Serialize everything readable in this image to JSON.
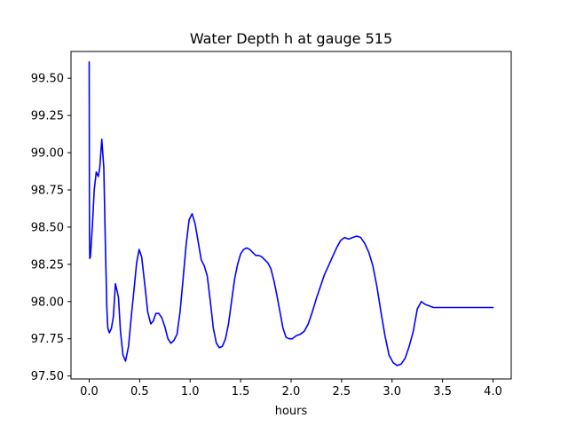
{
  "chart_data": {
    "type": "line",
    "title": "Water Depth h at gauge 515",
    "xlabel": "hours",
    "ylabel": "",
    "xlim": [
      -0.18,
      4.18
    ],
    "ylim": [
      97.48,
      99.68
    ],
    "x_ticks": [
      0.0,
      0.5,
      1.0,
      1.5,
      2.0,
      2.5,
      3.0,
      3.5,
      4.0
    ],
    "x_tick_labels": [
      "0.0",
      "0.5",
      "1.0",
      "1.5",
      "2.0",
      "2.5",
      "3.0",
      "3.5",
      "4.0"
    ],
    "y_ticks": [
      97.5,
      97.75,
      98.0,
      98.25,
      98.5,
      98.75,
      99.0,
      99.25,
      99.5
    ],
    "y_tick_labels": [
      "97.50",
      "97.75",
      "98.00",
      "98.25",
      "98.50",
      "98.75",
      "99.00",
      "99.25",
      "99.50"
    ],
    "grid": false,
    "legend": "none",
    "series": [
      {
        "color": "#0000ff",
        "x": [
          0.0,
          0.003,
          0.006,
          0.012,
          0.02,
          0.035,
          0.05,
          0.07,
          0.09,
          0.105,
          0.125,
          0.145,
          0.16,
          0.175,
          0.185,
          0.2,
          0.22,
          0.24,
          0.26,
          0.29,
          0.31,
          0.335,
          0.36,
          0.39,
          0.42,
          0.45,
          0.47,
          0.495,
          0.52,
          0.55,
          0.58,
          0.61,
          0.635,
          0.66,
          0.69,
          0.72,
          0.75,
          0.78,
          0.81,
          0.84,
          0.87,
          0.9,
          0.93,
          0.96,
          0.99,
          1.02,
          1.05,
          1.08,
          1.11,
          1.14,
          1.17,
          1.2,
          1.23,
          1.26,
          1.29,
          1.32,
          1.35,
          1.38,
          1.41,
          1.44,
          1.47,
          1.5,
          1.53,
          1.56,
          1.59,
          1.62,
          1.65,
          1.68,
          1.71,
          1.74,
          1.77,
          1.8,
          1.83,
          1.86,
          1.89,
          1.92,
          1.95,
          1.98,
          2.01,
          2.05,
          2.09,
          2.13,
          2.17,
          2.21,
          2.25,
          2.29,
          2.33,
          2.37,
          2.41,
          2.45,
          2.49,
          2.53,
          2.57,
          2.61,
          2.65,
          2.69,
          2.73,
          2.77,
          2.81,
          2.85,
          2.89,
          2.93,
          2.97,
          3.01,
          3.05,
          3.09,
          3.13,
          3.17,
          3.21,
          3.25,
          3.29,
          3.33,
          3.37,
          3.41,
          3.45,
          3.49,
          3.53,
          3.57,
          3.61,
          3.65,
          3.69,
          3.73,
          3.77,
          3.81,
          3.85,
          3.89,
          3.93,
          3.97,
          4.0
        ],
        "y": [
          99.61,
          98.45,
          98.29,
          98.3,
          98.38,
          98.55,
          98.75,
          98.87,
          98.84,
          98.9,
          99.09,
          98.9,
          98.4,
          97.95,
          97.82,
          97.79,
          97.82,
          97.9,
          98.12,
          98.03,
          97.8,
          97.64,
          97.6,
          97.7,
          97.92,
          98.12,
          98.26,
          98.35,
          98.3,
          98.12,
          97.93,
          97.85,
          97.87,
          97.92,
          97.92,
          97.89,
          97.83,
          97.75,
          97.72,
          97.74,
          97.78,
          97.93,
          98.15,
          98.38,
          98.55,
          98.59,
          98.52,
          98.4,
          98.28,
          98.24,
          98.17,
          98.0,
          97.82,
          97.72,
          97.69,
          97.7,
          97.75,
          97.85,
          98.0,
          98.15,
          98.25,
          98.32,
          98.35,
          98.36,
          98.35,
          98.33,
          98.31,
          98.31,
          98.3,
          98.28,
          98.26,
          98.22,
          98.14,
          98.04,
          97.93,
          97.82,
          97.76,
          97.75,
          97.75,
          97.77,
          97.78,
          97.8,
          97.85,
          97.93,
          98.02,
          98.1,
          98.18,
          98.24,
          98.3,
          98.36,
          98.41,
          98.43,
          98.42,
          98.43,
          98.44,
          98.43,
          98.39,
          98.33,
          98.24,
          98.1,
          97.93,
          97.77,
          97.64,
          97.59,
          97.57,
          97.58,
          97.62,
          97.7,
          97.8,
          97.95,
          98.0,
          97.98,
          97.97,
          97.96,
          97.96,
          97.96,
          97.96,
          97.96,
          97.96,
          97.96,
          97.96,
          97.96,
          97.96,
          97.96,
          97.96,
          97.96,
          97.96,
          97.96,
          97.96
        ]
      }
    ]
  }
}
